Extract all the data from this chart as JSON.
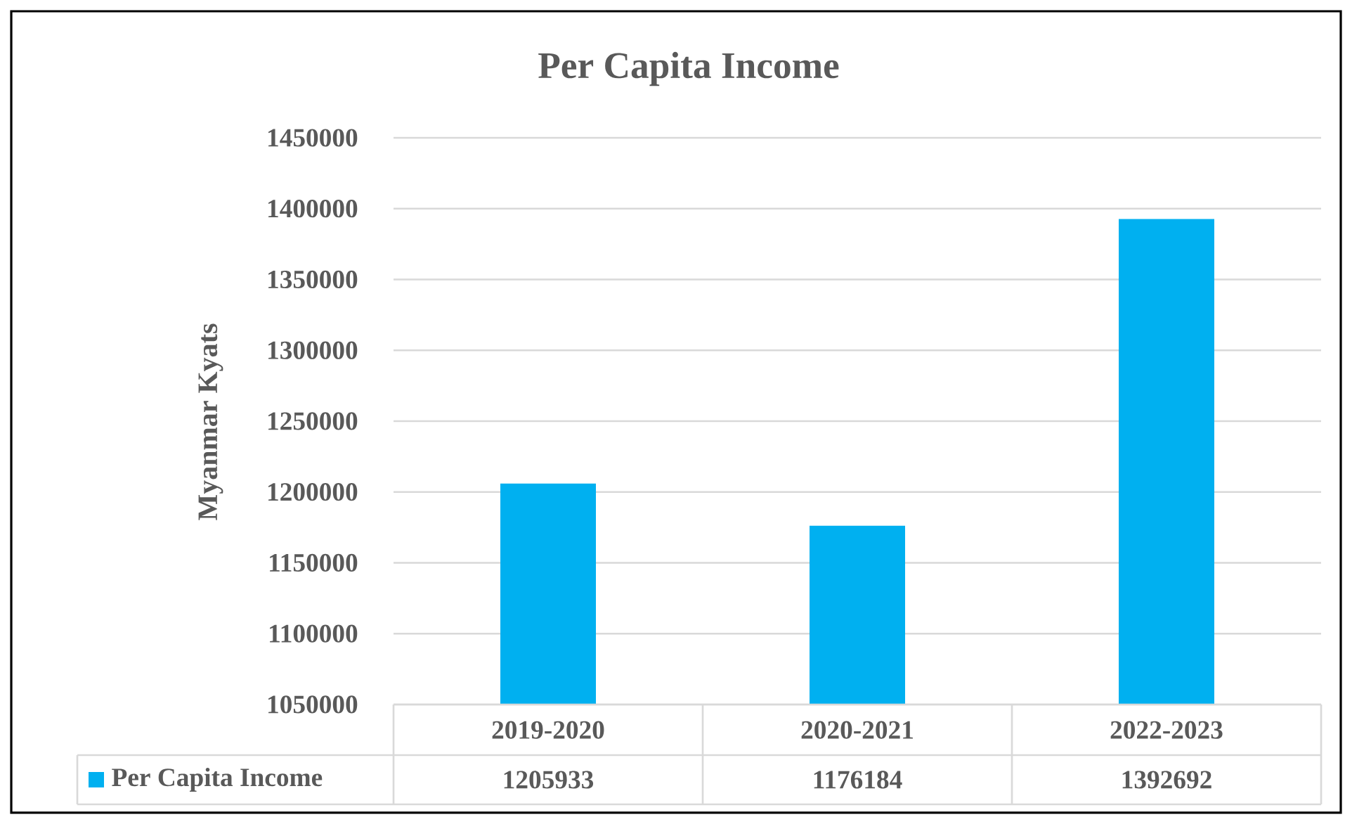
{
  "chart_data": {
    "type": "bar",
    "title": "Per Capita Income",
    "ylabel": "Myanmar Kyats",
    "categories": [
      "2019-2020",
      "2020-2021",
      "2022-2023"
    ],
    "series": [
      {
        "name": "Per Capita Income",
        "color": "#00b0f0",
        "values": [
          1205933,
          1176184,
          1392692
        ],
        "value_labels": [
          "1205933",
          "1176184",
          "1392692"
        ]
      }
    ],
    "ylim": [
      1050000,
      1450000
    ],
    "yticks": [
      1050000,
      1100000,
      1150000,
      1200000,
      1250000,
      1300000,
      1350000,
      1400000,
      1450000
    ],
    "grid": "y",
    "legend": "bottom"
  }
}
